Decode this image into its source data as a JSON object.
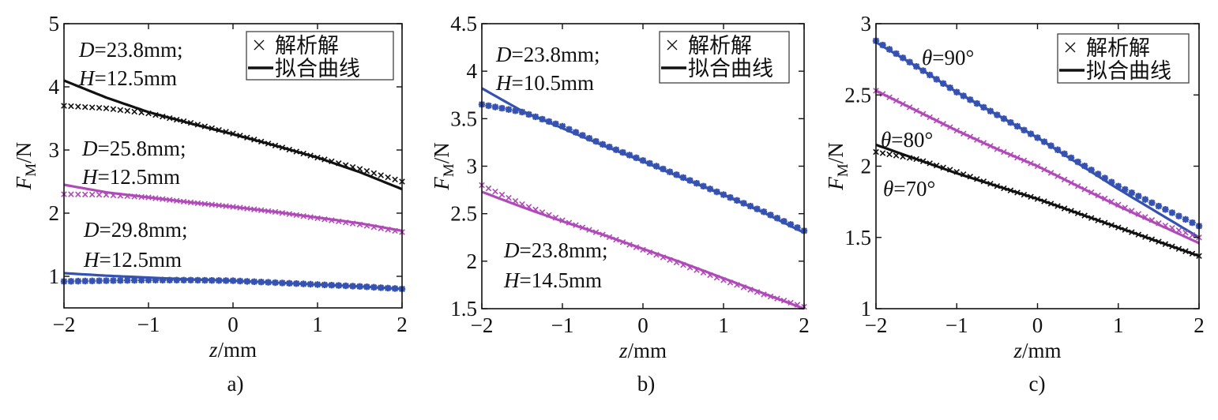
{
  "chart_data": [
    {
      "type": "line",
      "panel_label": "a)",
      "xlabel_var": "z",
      "xlabel_unit": "/mm",
      "ylabel_var": "F",
      "ylabel_sub": "M",
      "ylabel_unit": "/N",
      "xlim": [
        -2,
        2
      ],
      "ylim": [
        0.5,
        5
      ],
      "xticks": [
        -2,
        -1,
        0,
        1,
        2
      ],
      "yticks": [
        1,
        2,
        3,
        4,
        5
      ],
      "xtick_labels": [
        "−2",
        "−1",
        "0",
        "1",
        "2"
      ],
      "ytick_labels": [
        "1",
        "2",
        "3",
        "4",
        "5"
      ],
      "grid": false,
      "legend_placement": "top-right",
      "legend": {
        "marker_label": "解析解",
        "line_label": "拟合曲线"
      },
      "x": [
        -2,
        -1.5,
        -1,
        -0.5,
        0,
        0.5,
        1,
        1.5,
        2
      ],
      "series": [
        {
          "color": "#111111",
          "marker": "x",
          "fit": [
            4.1,
            3.83,
            3.6,
            3.42,
            3.25,
            3.07,
            2.88,
            2.65,
            2.38
          ],
          "analytic": [
            3.7,
            3.66,
            3.58,
            3.43,
            3.26,
            3.07,
            2.88,
            2.7,
            2.5
          ]
        },
        {
          "color": "#b04ab8",
          "marker": "x",
          "fit": [
            2.45,
            2.33,
            2.25,
            2.17,
            2.1,
            2.02,
            1.93,
            1.84,
            1.72
          ],
          "analytic": [
            2.3,
            2.29,
            2.25,
            2.17,
            2.1,
            2.02,
            1.92,
            1.82,
            1.7
          ]
        },
        {
          "color": "#3652b0",
          "marker": "star",
          "fit": [
            1.05,
            1.01,
            0.98,
            0.95,
            0.93,
            0.9,
            0.87,
            0.84,
            0.8
          ],
          "analytic": [
            0.92,
            0.93,
            0.94,
            0.94,
            0.93,
            0.9,
            0.87,
            0.84,
            0.8
          ]
        }
      ],
      "annotations": [
        {
          "var": "D",
          "text": "=23.8mm;"
        },
        {
          "var": "H",
          "text": "=12.5mm"
        },
        {
          "var": "D",
          "text": "=25.8mm;"
        },
        {
          "var": "H",
          "text": "=12.5mm"
        },
        {
          "var": "D",
          "text": "=29.8mm;"
        },
        {
          "var": "H",
          "text": "=12.5mm"
        }
      ]
    },
    {
      "type": "line",
      "panel_label": "b)",
      "xlabel_var": "z",
      "xlabel_unit": "/mm",
      "ylabel_var": "F",
      "ylabel_sub": "M",
      "ylabel_unit": "/N",
      "xlim": [
        -2,
        2
      ],
      "ylim": [
        1.5,
        4.5
      ],
      "xticks": [
        -2,
        -1,
        0,
        1,
        2
      ],
      "yticks": [
        1.5,
        2,
        2.5,
        3,
        3.5,
        4,
        4.5
      ],
      "xtick_labels": [
        "−2",
        "−1",
        "0",
        "1",
        "2"
      ],
      "ytick_labels": [
        "1.5",
        "2",
        "2.5",
        "3",
        "3.5",
        "4",
        "4.5"
      ],
      "grid": false,
      "legend_placement": "top-right",
      "legend": {
        "marker_label": "解析解",
        "line_label": "拟合曲线"
      },
      "x": [
        -2,
        -1.5,
        -1,
        -0.5,
        0,
        0.5,
        1,
        1.5,
        2
      ],
      "series": [
        {
          "color": "#3652b0",
          "marker": "star",
          "fit": [
            3.82,
            3.58,
            3.4,
            3.22,
            3.05,
            2.87,
            2.7,
            2.51,
            2.3
          ],
          "analytic": [
            3.65,
            3.57,
            3.42,
            3.23,
            3.06,
            2.88,
            2.7,
            2.52,
            2.32
          ]
        },
        {
          "color": "#b04ab8",
          "marker": "x",
          "fit": [
            2.73,
            2.57,
            2.42,
            2.28,
            2.13,
            1.98,
            1.82,
            1.66,
            1.5
          ],
          "analytic": [
            2.8,
            2.6,
            2.43,
            2.28,
            2.12,
            1.96,
            1.8,
            1.65,
            1.52
          ]
        }
      ],
      "annotations": [
        {
          "var": "D",
          "text": "=23.8mm;"
        },
        {
          "var": "H",
          "text": "=10.5mm"
        },
        {
          "var": "D",
          "text": "=23.8mm;"
        },
        {
          "var": "H",
          "text": "=14.5mm"
        }
      ]
    },
    {
      "type": "line",
      "panel_label": "c)",
      "xlabel_var": "z",
      "xlabel_unit": "/mm",
      "ylabel_var": "F",
      "ylabel_sub": "M",
      "ylabel_unit": "/N",
      "xlim": [
        -2,
        2
      ],
      "ylim": [
        1,
        3
      ],
      "xticks": [
        -2,
        -1,
        0,
        1,
        2
      ],
      "yticks": [
        1,
        1.5,
        2,
        2.5,
        3
      ],
      "xtick_labels": [
        "−2",
        "−1",
        "0",
        "1",
        "2"
      ],
      "ytick_labels": [
        "1",
        "1.5",
        "2",
        "2.5",
        "3"
      ],
      "grid": false,
      "legend_placement": "top-right",
      "legend": {
        "marker_label": "解析解",
        "line_label": "拟合曲线"
      },
      "x": [
        -2,
        -1.5,
        -1,
        -0.5,
        0,
        0.5,
        1,
        1.5,
        2
      ],
      "series": [
        {
          "color": "#3652b0",
          "marker": "star",
          "fit": [
            2.87,
            2.7,
            2.52,
            2.36,
            2.2,
            2.02,
            1.84,
            1.67,
            1.5
          ],
          "analytic": [
            2.88,
            2.7,
            2.52,
            2.36,
            2.2,
            2.03,
            1.86,
            1.72,
            1.58
          ]
        },
        {
          "color": "#b04ab8",
          "marker": "x",
          "fit": [
            2.53,
            2.39,
            2.25,
            2.12,
            2.0,
            1.86,
            1.72,
            1.59,
            1.46
          ],
          "analytic": [
            2.53,
            2.39,
            2.25,
            2.12,
            2.0,
            1.86,
            1.73,
            1.6,
            1.5
          ]
        },
        {
          "color": "#111111",
          "marker": "x",
          "fit": [
            2.15,
            2.05,
            1.95,
            1.86,
            1.77,
            1.67,
            1.57,
            1.47,
            1.37
          ],
          "analytic": [
            2.1,
            2.05,
            1.96,
            1.86,
            1.77,
            1.67,
            1.57,
            1.47,
            1.37
          ]
        }
      ],
      "annotations": [
        {
          "var": "θ",
          "text": "=90°"
        },
        {
          "var": "θ",
          "text": "=80°"
        },
        {
          "var": "θ",
          "text": "=70°"
        }
      ]
    }
  ]
}
